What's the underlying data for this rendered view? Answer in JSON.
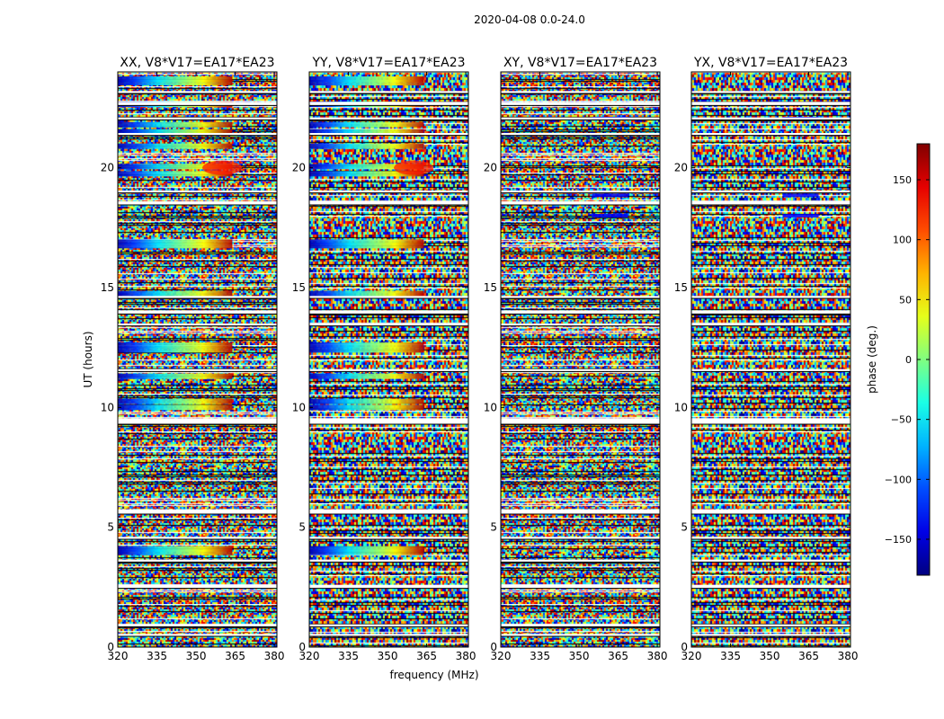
{
  "chart_data": {
    "type": "heatmap",
    "suptitle": "2020-04-08 0.0-24.0",
    "xlabel": "frequency (MHz)",
    "ylabel": "UT (hours)",
    "xlim": [
      320,
      381
    ],
    "ylim": [
      0,
      24
    ],
    "xticks": [
      "320",
      "335",
      "350",
      "365",
      "380"
    ],
    "yticks": [
      "0",
      "5",
      "10",
      "15",
      "20"
    ],
    "colormap": "jet",
    "colorbar": {
      "label": "phase (deg.)",
      "range": [
        -180,
        180
      ],
      "ticks": [
        "150",
        "100",
        "50",
        "0",
        "−50",
        "−100",
        "−150"
      ]
    },
    "panels": [
      {
        "title": "XX, V8*V17=EA17*EA23",
        "coherent": true
      },
      {
        "title": "YY, V8*V17=EA17*EA23",
        "coherent": true
      },
      {
        "title": "XY, V8*V17=EA17*EA23",
        "coherent": false
      },
      {
        "title": "YX, V8*V17=EA17*EA23",
        "coherent": false
      }
    ],
    "flagged_ut_bands": [
      [
        0.45,
        0.55
      ],
      [
        0.85,
        0.95
      ],
      [
        2.45,
        2.6
      ],
      [
        3.55,
        3.65
      ],
      [
        4.5,
        4.6
      ],
      [
        5.55,
        5.75
      ],
      [
        9.3,
        9.55
      ],
      [
        11.5,
        11.6
      ],
      [
        13.4,
        13.5
      ],
      [
        13.9,
        14.05
      ],
      [
        14.55,
        14.65
      ],
      [
        18.45,
        18.6
      ],
      [
        18.95,
        19.05
      ],
      [
        21.35,
        21.45
      ],
      [
        22.0,
        22.1
      ],
      [
        22.6,
        22.75
      ],
      [
        23.1,
        23.2
      ]
    ]
  }
}
